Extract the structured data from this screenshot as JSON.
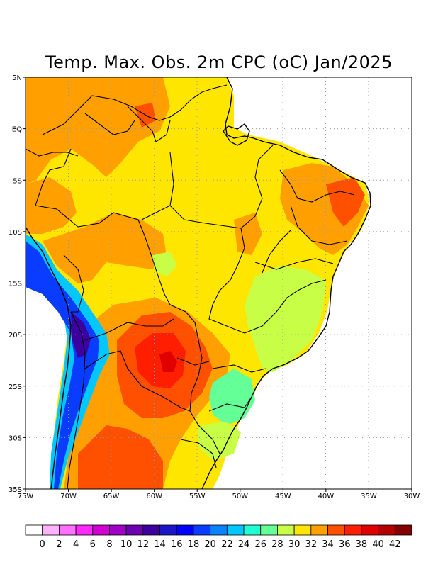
{
  "title": "Temp. Max. Obs. 2m CPC (oC) Jan/2025",
  "map": {
    "lon_range": [
      -75,
      -30
    ],
    "lat_range": [
      -35,
      5
    ],
    "x_ticks": [
      {
        "lon": -75,
        "label": "75W"
      },
      {
        "lon": -70,
        "label": "70W"
      },
      {
        "lon": -65,
        "label": "65W"
      },
      {
        "lon": -60,
        "label": "60W"
      },
      {
        "lon": -55,
        "label": "55W"
      },
      {
        "lon": -50,
        "label": "50W"
      },
      {
        "lon": -45,
        "label": "45W"
      },
      {
        "lon": -40,
        "label": "40W"
      },
      {
        "lon": -35,
        "label": "35W"
      },
      {
        "lon": -30,
        "label": "30W"
      }
    ],
    "y_ticks": [
      {
        "lat": 5,
        "label": "5N"
      },
      {
        "lat": 0,
        "label": "EQ"
      },
      {
        "lat": -5,
        "label": "5S"
      },
      {
        "lat": -10,
        "label": "10S"
      },
      {
        "lat": -15,
        "label": "15S"
      },
      {
        "lat": -20,
        "label": "20S"
      },
      {
        "lat": -25,
        "label": "25S"
      },
      {
        "lat": -30,
        "label": "30S"
      },
      {
        "lat": -35,
        "label": "35S"
      }
    ],
    "grid": true
  },
  "colorbar": {
    "labels": [
      "0",
      "2",
      "4",
      "6",
      "8",
      "10",
      "12",
      "14",
      "16",
      "18",
      "20",
      "22",
      "24",
      "26",
      "28",
      "30",
      "32",
      "34",
      "36",
      "38",
      "40",
      "42"
    ],
    "colors": [
      "#ffffff",
      "#ffb3ff",
      "#ff70ff",
      "#ff28ff",
      "#d200d2",
      "#a000c8",
      "#6e00b4",
      "#3c00a0",
      "#1e14c8",
      "#0000ff",
      "#0a3cff",
      "#0a82ff",
      "#00c8ff",
      "#1effd2",
      "#64ff96",
      "#c8ff46",
      "#ffe600",
      "#ffa000",
      "#ff5000",
      "#ff1e00",
      "#e10000",
      "#b40000",
      "#820000"
    ]
  },
  "legend_colors": {
    "yellow": "#ffe600",
    "orange": "#ffa000",
    "red_orange": "#ff5000",
    "red": "#ff1e00",
    "light_green": "#c8ff46",
    "green": "#64ff96",
    "cyan": "#00c8ff",
    "blue": "#0a3cff",
    "dark_blue": "#3c00a0"
  }
}
